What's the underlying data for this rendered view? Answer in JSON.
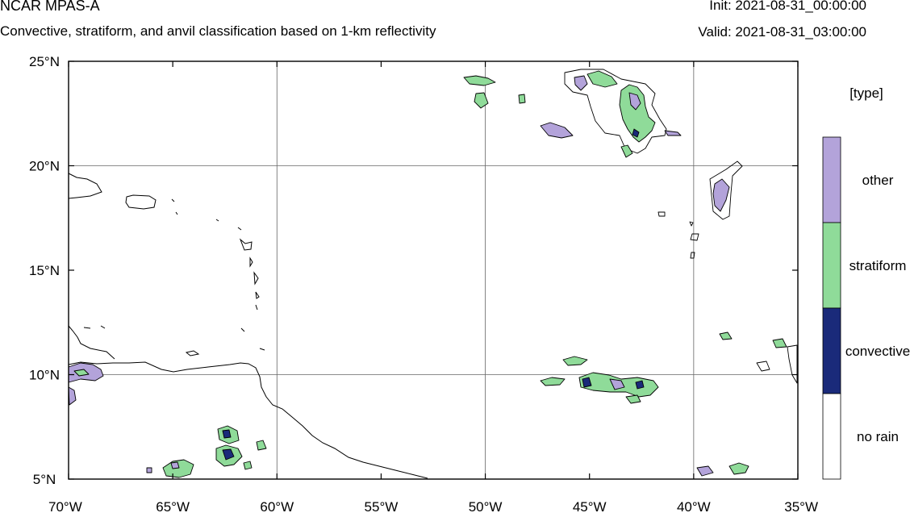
{
  "header": {
    "title": "NCAR MPAS-A",
    "subtitle": "Convective, stratiform, and anvil classification based on 1-km reflectivity",
    "init": "Init: 2021-08-31_00:00:00",
    "valid": "Valid: 2021-08-31_03:00:00"
  },
  "map": {
    "lon_range": [
      -70,
      -35
    ],
    "lat_range": [
      5,
      25
    ],
    "x_ticks": [
      {
        "value": -70,
        "label": "70°W"
      },
      {
        "value": -65,
        "label": "65°W"
      },
      {
        "value": -60,
        "label": "60°W"
      },
      {
        "value": -55,
        "label": "55°W"
      },
      {
        "value": -50,
        "label": "50°W"
      },
      {
        "value": -45,
        "label": "45°W"
      },
      {
        "value": -40,
        "label": "40°W"
      },
      {
        "value": -35,
        "label": "35°W"
      }
    ],
    "y_ticks": [
      {
        "value": 25,
        "label": "25°N"
      },
      {
        "value": 20,
        "label": "20°N"
      },
      {
        "value": 15,
        "label": "15°N"
      },
      {
        "value": 10,
        "label": "10°N"
      },
      {
        "value": 5,
        "label": "5°N"
      }
    ],
    "gridlines": [
      -60,
      -50,
      -40,
      20,
      10
    ]
  },
  "legend": {
    "title": "[type]",
    "items": [
      {
        "label": "other",
        "color": "#b3a3da"
      },
      {
        "label": "stratiform",
        "color": "#8fdb99"
      },
      {
        "label": "convective",
        "color": "#1a2a7a"
      },
      {
        "label": "no rain",
        "color": "#ffffff"
      }
    ]
  },
  "colors": {
    "other": "#b3a3da",
    "stratiform": "#8fdb99",
    "convective": "#1a2a7a"
  }
}
